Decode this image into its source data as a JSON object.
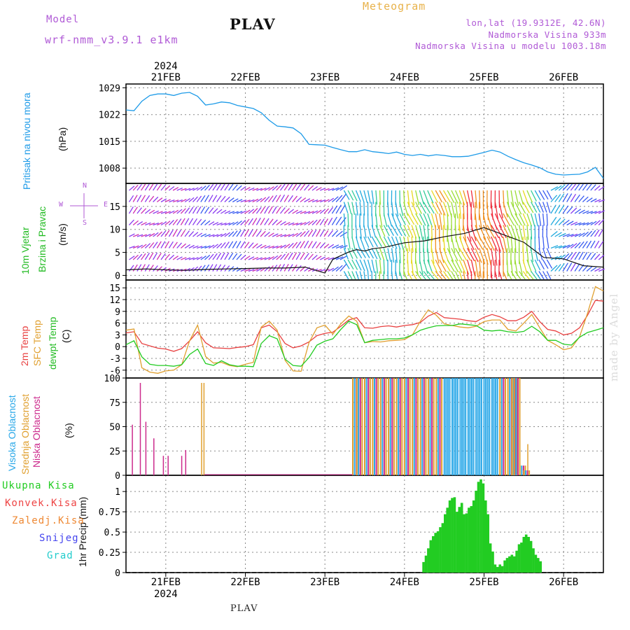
{
  "header": {
    "model_label": "Model",
    "model_name": "wrf-nmm_v3.9.1 e1km",
    "station": "PLAV",
    "meteogram": "Meteogram",
    "coords": "lon,lat (19.9312E, 42.6N)",
    "elevation": "Nadmorska Visina 933m",
    "model_elevation": "Nadmorska Visina u modelu 1003.18m",
    "bottom_station": "PLAV",
    "watermark": "made by Angel"
  },
  "time_axis": {
    "top_year": "2024",
    "bottom_year": "2024",
    "dates": [
      "21FEB",
      "22FEB",
      "23FEB",
      "24FEB",
      "25FEB",
      "26FEB"
    ]
  },
  "panel_labels": {
    "pressure": [
      "Pritisak na nivou mora",
      "(hPa)"
    ],
    "wind": [
      "10m Vjetar",
      "Brzina i Pravac",
      "(m/s)"
    ],
    "compass": {
      "n": "N",
      "s": "S",
      "w": "W",
      "e": "E"
    },
    "temp": [
      "2m Temp",
      "SFC Temp",
      "dewpt Temp",
      "(C)"
    ],
    "cloud": [
      "Visoka Oblacnost",
      "Srednja Oblacnost",
      "Niska Oblacnost",
      "(%)"
    ],
    "precip_ylabel": "1hr Precip (mm)",
    "precip_legend": [
      "Ukupna Kisa",
      "Konvek.Kisa",
      "Zaledj.Kisa",
      "Snijeg",
      "Grad"
    ]
  },
  "colors": {
    "pressure": "#1e9be8",
    "wind_label_1": "#22bb22",
    "wind_label_2": "#22bb22",
    "temp_2m": "#e84040",
    "temp_sfc": "#e0a030",
    "temp_dewpt": "#22cc22",
    "cloud_high": "#2aa8e8",
    "cloud_mid": "#e0a030",
    "cloud_low": "#cc2a8c",
    "precip_total": "#22cc22",
    "precip_conv": "#ee4444",
    "precip_frz": "#ee8833",
    "precip_snow": "#4444ee",
    "precip_hail": "#22cccc",
    "compass": "#b05ad6"
  },
  "chart_data": [
    {
      "type": "line",
      "panel": "pressure",
      "ylim": [
        1004,
        1030
      ],
      "yticks": [
        1008,
        1015,
        1022,
        1029
      ],
      "xlim": [
        -0.5,
        5.5
      ],
      "x": [
        -0.5,
        -0.4,
        -0.3,
        -0.2,
        -0.1,
        0,
        0.1,
        0.2,
        0.3,
        0.4,
        0.5,
        0.6,
        0.7,
        0.8,
        0.9,
        1,
        1.1,
        1.2,
        1.3,
        1.4,
        1.5,
        1.6,
        1.7,
        1.8,
        1.9,
        2,
        2.1,
        2.2,
        2.3,
        2.4,
        2.5,
        2.6,
        2.7,
        2.8,
        2.9,
        3,
        3.1,
        3.2,
        3.3,
        3.4,
        3.5,
        3.6,
        3.7,
        3.8,
        3.9,
        4,
        4.1,
        4.2,
        4.3,
        4.4,
        4.5,
        4.6,
        4.7,
        4.8,
        4.9,
        5,
        5.1,
        5.2,
        5.3,
        5.4,
        5.5
      ],
      "series": [
        {
          "values": [
            1023.2,
            1023,
            1025.5,
            1027,
            1027.4,
            1027.4,
            1027,
            1027.6,
            1027.8,
            1026.8,
            1024.5,
            1024.8,
            1025.3,
            1025.1,
            1024.4,
            1024,
            1023.6,
            1022.5,
            1020.5,
            1019,
            1018.8,
            1018.5,
            1017,
            1014.2,
            1014.1,
            1014,
            1013.4,
            1012.8,
            1012.3,
            1012.3,
            1012.8,
            1012.3,
            1012.1,
            1011.8,
            1012.2,
            1011.6,
            1011.3,
            1011.6,
            1011.2,
            1011.5,
            1011.3,
            1011,
            1011,
            1011.1,
            1011.6,
            1012.1,
            1012.7,
            1012.2,
            1011.1,
            1010.2,
            1009.4,
            1008.8,
            1008.1,
            1007,
            1006.4,
            1006.2,
            1006.3,
            1006.4,
            1007,
            1008.2,
            1005.3
          ]
        }
      ]
    },
    {
      "type": "line",
      "panel": "wind",
      "ylim": [
        -1,
        20
      ],
      "yticks": [
        0,
        5,
        10,
        15
      ],
      "xlim": [
        -0.5,
        5.5
      ],
      "x": [
        -0.5,
        -0.25,
        0,
        0.25,
        0.5,
        0.75,
        1,
        1.25,
        1.5,
        1.75,
        2,
        2.1,
        2.2,
        2.3,
        2.4,
        2.5,
        2.6,
        2.75,
        3,
        3.25,
        3.5,
        3.75,
        4,
        4.25,
        4.5,
        4.75,
        5,
        5.25,
        5.5
      ],
      "series": [
        {
          "values": [
            1.2,
            1.4,
            1.2,
            1.1,
            1.3,
            1.4,
            1.5,
            1.6,
            1.6,
            1.8,
            0.5,
            3.5,
            4.3,
            5.1,
            5.6,
            5.3,
            5.8,
            6.1,
            7.1,
            7.5,
            8.4,
            9.1,
            10.4,
            8.8,
            7.2,
            3.9,
            3.6,
            2.1,
            1.8
          ]
        }
      ]
    },
    {
      "type": "line",
      "panel": "temperature",
      "ylim": [
        -8,
        17
      ],
      "yticks": [
        -6,
        -3,
        0,
        3,
        6,
        9,
        12,
        15
      ],
      "xlim": [
        -0.5,
        5.5
      ],
      "x": [
        -0.5,
        -0.4,
        -0.3,
        -0.2,
        -0.1,
        0,
        0.1,
        0.2,
        0.3,
        0.4,
        0.5,
        0.6,
        0.7,
        0.8,
        0.9,
        1,
        1.1,
        1.2,
        1.3,
        1.4,
        1.5,
        1.6,
        1.7,
        1.8,
        1.9,
        2,
        2.1,
        2.2,
        2.3,
        2.4,
        2.5,
        2.6,
        2.7,
        2.8,
        2.9,
        3,
        3.1,
        3.2,
        3.3,
        3.4,
        3.5,
        3.6,
        3.7,
        3.8,
        3.9,
        4,
        4.1,
        4.2,
        4.3,
        4.4,
        4.5,
        4.6,
        4.7,
        4.8,
        4.9,
        5,
        5.1,
        5.2,
        5.3,
        5.4,
        5.5
      ],
      "series": [
        {
          "name": "2m Temp",
          "values": [
            3.5,
            3.8,
            0.8,
            0.2,
            -0.4,
            -0.6,
            -1.2,
            -0.5,
            1.5,
            3.8,
            1.0,
            -0.3,
            -0.4,
            -0.5,
            -0.2,
            0,
            0.5,
            4.8,
            5.5,
            3.8,
            0.8,
            -0.3,
            0.2,
            1.2,
            2.8,
            3.4,
            3.7,
            5.2,
            6.8,
            7.4,
            4.8,
            4.7,
            5.1,
            5.3,
            5.0,
            5.4,
            5.6,
            6.2,
            7.8,
            8.7,
            7.4,
            7.2,
            7.0,
            6.6,
            6.4,
            7.5,
            8.2,
            7.6,
            6.6,
            6.6,
            7.5,
            9.0,
            6.4,
            4.4,
            4.0,
            3.0,
            3.4,
            4.8,
            8.0,
            11.8,
            11.6
          ]
        },
        {
          "name": "SFC Temp",
          "values": [
            4.2,
            4.5,
            -5.4,
            -6.5,
            -6.8,
            -6.2,
            -6.0,
            -4.6,
            1.5,
            5.5,
            -2.5,
            -4.2,
            -4.0,
            -4.8,
            -5.1,
            -4.5,
            -4.0,
            5.0,
            6.5,
            4.2,
            -3.5,
            -6.2,
            -6.3,
            1.0,
            4.8,
            5.5,
            3.2,
            5.8,
            7.8,
            6.5,
            1.0,
            1.3,
            1.2,
            1.5,
            1.6,
            1.8,
            3.0,
            6.5,
            9.4,
            8.0,
            5.8,
            5.4,
            5.0,
            4.8,
            5.2,
            6.4,
            6.8,
            6.8,
            4.4,
            4.0,
            6.0,
            8.2,
            4.8,
            1.6,
            0.5,
            -0.8,
            -0.3,
            2.5,
            8.5,
            15.3,
            14.2
          ]
        },
        {
          "name": "dewpt Temp",
          "values": [
            0.5,
            1.5,
            -2.6,
            -4.5,
            -4.8,
            -4.8,
            -5.0,
            -4.6,
            -2.0,
            -0.6,
            -4.3,
            -4.8,
            -3.6,
            -4.6,
            -5.0,
            -5.0,
            -5.1,
            0.8,
            2.8,
            2.0,
            -3.2,
            -4.8,
            -5.0,
            -2.8,
            0.4,
            1.4,
            2.0,
            4.4,
            6.5,
            5.6,
            1.0,
            1.6,
            1.8,
            2.0,
            2.0,
            2.2,
            3.0,
            4.2,
            4.8,
            5.3,
            5.4,
            5.4,
            5.8,
            5.6,
            5.4,
            4.2,
            4.0,
            4.2,
            3.8,
            3.6,
            3.9,
            5.2,
            3.8,
            1.6,
            1.6,
            0.6,
            0.4,
            2.4,
            3.6,
            4.2,
            4.8
          ]
        }
      ]
    },
    {
      "type": "bar",
      "panel": "cloud",
      "ylim": [
        0,
        100
      ],
      "yticks": [
        0,
        25,
        50,
        75,
        100
      ],
      "xlim": [
        -0.5,
        5.5
      ],
      "series": [
        {
          "name": "Niska Oblacnost",
          "x": [
            -0.42,
            -0.32,
            -0.25,
            -0.15,
            -0.03,
            0.03,
            0.2,
            0.25
          ],
          "values": [
            52,
            95,
            55,
            38,
            20,
            20,
            20,
            26
          ]
        },
        {
          "name": "Srednja Oblacnost",
          "x": [
            0.45,
            0.48,
            4.55
          ],
          "values": [
            95,
            95,
            32
          ]
        },
        {
          "name": "Visoka Oblacnost",
          "x": [
            2.35,
            2.4,
            2.5,
            2.6,
            2.7,
            2.8,
            2.9,
            3.0,
            3.1,
            3.2,
            3.3,
            3.4,
            3.5,
            3.6,
            3.7,
            3.8,
            3.9,
            4.0,
            4.1,
            4.2,
            4.3,
            4.35,
            4.38,
            4.45,
            4.5
          ],
          "values": [
            100,
            100,
            100,
            100,
            100,
            100,
            100,
            100,
            100,
            100,
            100,
            100,
            100,
            100,
            100,
            100,
            100,
            100,
            100,
            100,
            100,
            100,
            100,
            10,
            5
          ]
        }
      ]
    },
    {
      "type": "bar",
      "panel": "precipitation",
      "ylim": [
        0,
        1.2
      ],
      "yticks": [
        0,
        0.25,
        0.5,
        0.75,
        1
      ],
      "xlim": [
        -0.5,
        5.5
      ],
      "series": [
        {
          "name": "Ukupna Kisa",
          "x": [
            3.24,
            3.27,
            3.3,
            3.33,
            3.36,
            3.39,
            3.42,
            3.45,
            3.48,
            3.51,
            3.54,
            3.57,
            3.6,
            3.63,
            3.66,
            3.69,
            3.72,
            3.75,
            3.78,
            3.81,
            3.84,
            3.87,
            3.9,
            3.93,
            3.96,
            3.99,
            4.02,
            4.05,
            4.08,
            4.11,
            4.14,
            4.17,
            4.2,
            4.23,
            4.26,
            4.29,
            4.32,
            4.35,
            4.38,
            4.41,
            4.44,
            4.47,
            4.5,
            4.53,
            4.56,
            4.59,
            4.62,
            4.65,
            4.68,
            4.71
          ],
          "values": [
            0.13,
            0.21,
            0.3,
            0.4,
            0.45,
            0.49,
            0.51,
            0.56,
            0.61,
            0.72,
            0.8,
            0.89,
            0.92,
            0.93,
            0.75,
            0.81,
            0.86,
            0.72,
            0.73,
            0.8,
            0.82,
            0.89,
            1.01,
            1.12,
            1.15,
            1.1,
            0.89,
            0.72,
            0.36,
            0.26,
            0.1,
            0.07,
            0.1,
            0.08,
            0.15,
            0.18,
            0.2,
            0.22,
            0.2,
            0.27,
            0.35,
            0.37,
            0.44,
            0.47,
            0.44,
            0.39,
            0.3,
            0.22,
            0.18,
            0.14
          ]
        },
        {
          "name": "Konvek.Kisa",
          "x": [],
          "values": []
        },
        {
          "name": "Zaledj.Kisa",
          "x": [],
          "values": []
        },
        {
          "name": "Snijeg",
          "x": [],
          "values": []
        },
        {
          "name": "Grad",
          "x": [],
          "values": []
        }
      ]
    }
  ]
}
